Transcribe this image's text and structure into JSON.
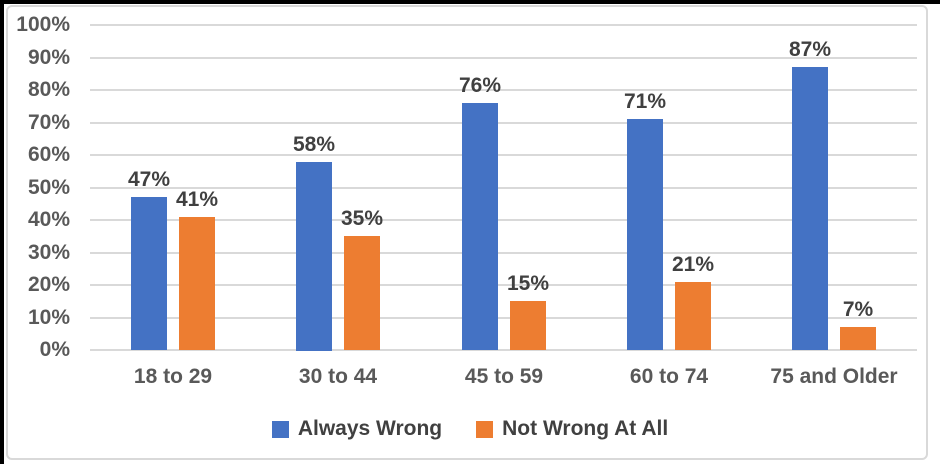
{
  "chart_data": {
    "type": "bar",
    "title": "",
    "categories": [
      "18 to 29",
      "30 to 44",
      "45 to 59",
      "60 to 74",
      "75 and Older"
    ],
    "series": [
      {
        "name": "Always Wrong",
        "color": "#4472C4",
        "values": [
          47,
          58,
          76,
          71,
          87
        ]
      },
      {
        "name": "Not Wrong At All",
        "color": "#ED7D31",
        "values": [
          41,
          35,
          15,
          21,
          7
        ]
      }
    ],
    "data_label_format": "{v}%",
    "y_axis": {
      "min": 0,
      "max": 100,
      "step": 10,
      "tick_format": "{v}%"
    },
    "tick_labels": [
      "0%",
      "10%",
      "20%",
      "30%",
      "40%",
      "50%",
      "60%",
      "70%",
      "80%",
      "90%",
      "100%"
    ],
    "ylim": [
      0,
      100
    ],
    "grid": true,
    "legend_position": "bottom"
  }
}
